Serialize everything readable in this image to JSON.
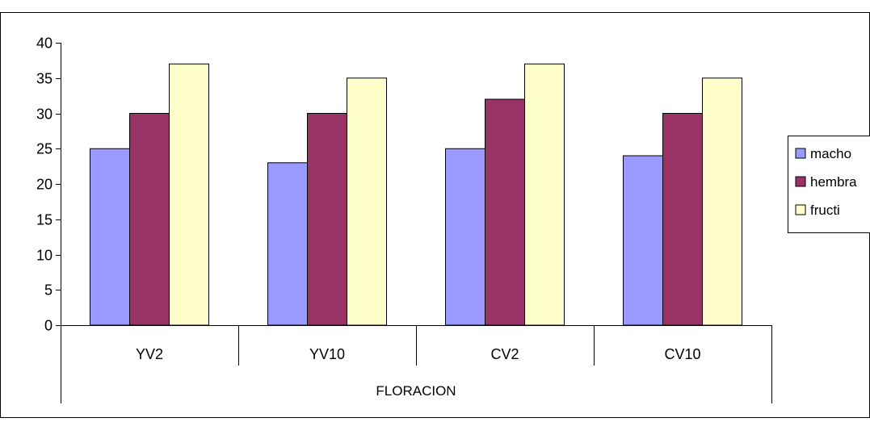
{
  "chart_data": {
    "type": "bar",
    "title": "",
    "xlabel": "FLORACION",
    "ylabel": "",
    "categories": [
      "YV2",
      "YV10",
      "CV2",
      "CV10"
    ],
    "series": [
      {
        "name": "macho",
        "values": [
          25,
          23,
          25,
          24
        ],
        "color": "#9999ff"
      },
      {
        "name": "hembra",
        "values": [
          30,
          30,
          32,
          30
        ],
        "color": "#993366"
      },
      {
        "name": "fructi",
        "values": [
          37,
          35,
          37,
          35
        ],
        "color": "#ffffcc"
      }
    ],
    "ylim": [
      0,
      40
    ],
    "yticks": [
      0,
      5,
      10,
      15,
      20,
      25,
      30,
      35,
      40
    ],
    "grid": false,
    "legend_position": "right"
  }
}
